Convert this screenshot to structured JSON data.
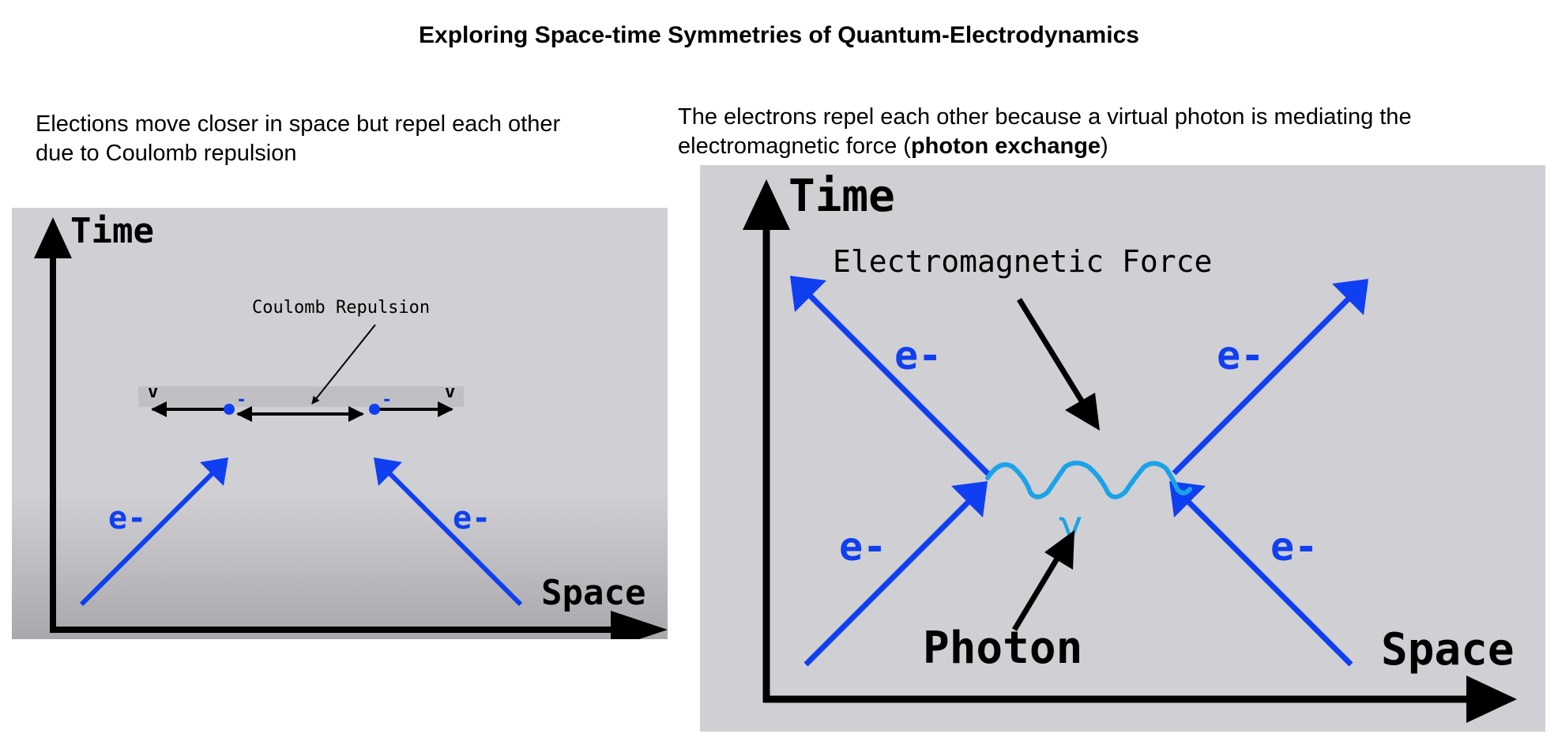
{
  "title": "Exploring Space-time Symmetries of Quantum-Electrodynamics",
  "left_caption": "Elections move closer in space but repel each other due to Coulomb repulsion",
  "right_caption": {
    "text_before": "The electrons repel each other because a virtual photon is mediating the electromagnetic force (",
    "bold": "photon exchange",
    "text_after": ")"
  },
  "left_diagram": {
    "time_label": "Time",
    "space_label": "Space",
    "annotation": "Coulomb Repulsion",
    "velocity_label_left": "v",
    "velocity_label_right": "v",
    "electron_charge_left": "-",
    "electron_charge_right": "-",
    "electron_label_left": "e-",
    "electron_label_right": "e-"
  },
  "right_diagram": {
    "time_label": "Time",
    "space_label": "Space",
    "force_annotation": "Electromagnetic Force",
    "photon_annotation": "Photon",
    "photon_symbol": "γ",
    "electron_label_top_left": "e-",
    "electron_label_top_right": "e-",
    "electron_label_bottom_left": "e-",
    "electron_label_bottom_right": "e-"
  },
  "colors": {
    "electron": "#0f3ff0",
    "photon": "#1aa3e8",
    "axis": "#000000",
    "panel": "#d0cfd3"
  }
}
